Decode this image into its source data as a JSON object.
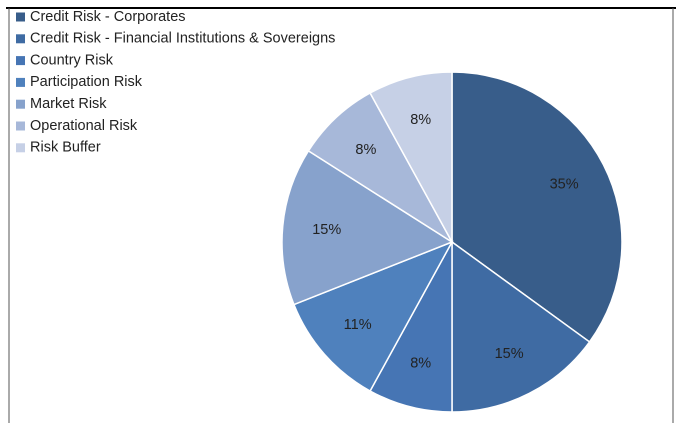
{
  "chart_data": {
    "type": "pie",
    "categories": [
      "Credit Risk - Corporates",
      "Credit Risk - Financial Institutions  & Sovereigns",
      "Country Risk",
      "Participation Risk",
      "Market Risk",
      "Operational Risk",
      "Risk Buffer"
    ],
    "values": [
      35,
      15,
      8,
      11,
      15,
      8,
      8
    ],
    "value_labels": [
      "35%",
      "15%",
      "8%",
      "11%",
      "15%",
      "8%",
      "8%"
    ],
    "colors": [
      "#385d8a",
      "#3f6ba3",
      "#4675b4",
      "#4f81bd",
      "#87a2cc",
      "#a7b8d9",
      "#c6d0e6"
    ],
    "legend": "top-left"
  }
}
